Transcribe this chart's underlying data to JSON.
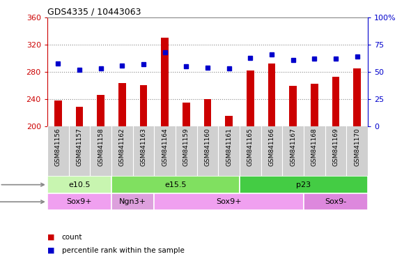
{
  "title": "GDS4335 / 10443063",
  "samples": [
    "GSM841156",
    "GSM841157",
    "GSM841158",
    "GSM841162",
    "GSM841163",
    "GSM841164",
    "GSM841159",
    "GSM841160",
    "GSM841161",
    "GSM841165",
    "GSM841166",
    "GSM841167",
    "GSM841168",
    "GSM841169",
    "GSM841170"
  ],
  "counts": [
    238,
    229,
    246,
    264,
    261,
    330,
    235,
    240,
    215,
    282,
    292,
    260,
    263,
    273,
    285
  ],
  "percentile": [
    58,
    52,
    53,
    56,
    57,
    68,
    55,
    54,
    53,
    63,
    66,
    61,
    62,
    62,
    64
  ],
  "ylim_left": [
    200,
    360
  ],
  "ylim_right": [
    0,
    100
  ],
  "yticks_left": [
    200,
    240,
    280,
    320,
    360
  ],
  "yticks_right": [
    0,
    25,
    50,
    75,
    100
  ],
  "age_groups": [
    {
      "label": "e10.5",
      "start": 0,
      "end": 3,
      "color": "#c8f5b0"
    },
    {
      "label": "e15.5",
      "start": 3,
      "end": 9,
      "color": "#80e060"
    },
    {
      "label": "p23",
      "start": 9,
      "end": 15,
      "color": "#44cc44"
    }
  ],
  "cell_groups": [
    {
      "label": "Sox9+",
      "start": 0,
      "end": 3,
      "color": "#f0a0f0"
    },
    {
      "label": "Ngn3+",
      "start": 3,
      "end": 5,
      "color": "#dda0dd"
    },
    {
      "label": "Sox9+",
      "start": 5,
      "end": 12,
      "color": "#f0a0f0"
    },
    {
      "label": "Sox9-",
      "start": 12,
      "end": 15,
      "color": "#dd88dd"
    }
  ],
  "bar_color": "#cc0000",
  "dot_color": "#0000cc",
  "grid_color": "#888888",
  "tick_color_left": "#cc0000",
  "tick_color_right": "#0000cc",
  "bg_color": "#ffffff",
  "label_bg_color": "#d0d0d0",
  "legend_items": [
    {
      "label": "count",
      "color": "#cc0000"
    },
    {
      "label": "percentile rank within the sample",
      "color": "#0000cc"
    }
  ]
}
